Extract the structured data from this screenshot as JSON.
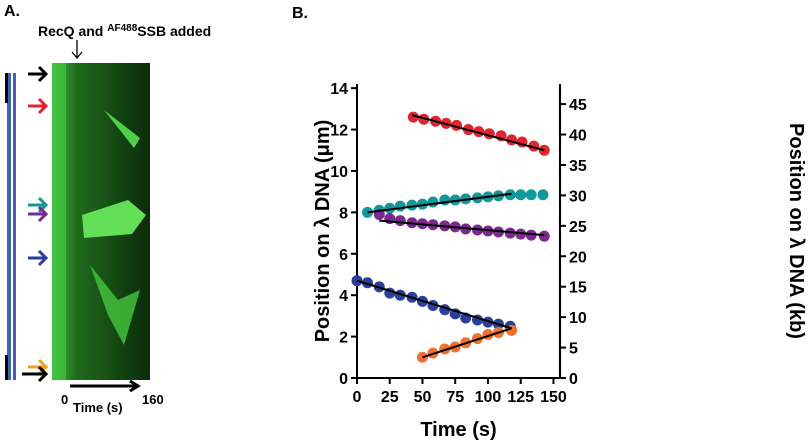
{
  "panel_a": {
    "label": "A.",
    "title_parts": [
      "RecQ and ",
      "AF488",
      "SSB added"
    ],
    "time_start": "0",
    "time_end": "160",
    "time_label": "Time (s)"
  },
  "chart_data": {
    "type": "scatter",
    "panel_label": "B.",
    "x_label": "Time (s)",
    "y_label": "Position on λ DNA (μm)",
    "y2_label": "Position on λ DNA (kb)",
    "xlim": [
      0,
      155
    ],
    "ylim": [
      0,
      14.2
    ],
    "y2lim": [
      0,
      48.3
    ],
    "xticks": [
      0,
      25,
      50,
      75,
      100,
      125,
      150
    ],
    "yticks": [
      0,
      2,
      4,
      6,
      8,
      10,
      12,
      14
    ],
    "y2ticks": [
      0,
      5,
      10,
      15,
      20,
      25,
      30,
      35,
      40,
      45
    ],
    "series": [
      {
        "color": "#e0262c",
        "x": [
          43,
          51,
          60,
          68,
          76,
          85,
          93,
          101,
          110,
          118,
          126,
          135,
          143
        ],
        "values": [
          12.6,
          12.5,
          12.4,
          12.3,
          12.2,
          12.0,
          11.9,
          11.8,
          11.7,
          11.5,
          11.4,
          11.2,
          11.0
        ]
      },
      {
        "color": "#12979a",
        "x": [
          8,
          17,
          25,
          33,
          42,
          50,
          58,
          67,
          75,
          83,
          92,
          100,
          108,
          117,
          125,
          133,
          142
        ],
        "values": [
          8.0,
          8.1,
          8.2,
          8.3,
          8.35,
          8.4,
          8.5,
          8.6,
          8.6,
          8.65,
          8.7,
          8.75,
          8.8,
          8.85,
          8.85,
          8.85,
          8.85
        ]
      },
      {
        "color": "#7a2a8e",
        "x": [
          17,
          25,
          33,
          42,
          50,
          58,
          67,
          75,
          83,
          92,
          100,
          108,
          117,
          125,
          133,
          143
        ],
        "values": [
          7.9,
          7.7,
          7.6,
          7.5,
          7.45,
          7.4,
          7.35,
          7.3,
          7.2,
          7.15,
          7.1,
          7.05,
          7.0,
          6.95,
          6.9,
          6.85
        ]
      },
      {
        "color": "#2a3f99",
        "x": [
          0,
          8,
          17,
          25,
          33,
          42,
          50,
          58,
          67,
          75,
          83,
          92,
          100,
          108,
          117
        ],
        "values": [
          4.7,
          4.6,
          4.4,
          4.1,
          4.0,
          3.9,
          3.7,
          3.5,
          3.3,
          3.1,
          2.9,
          2.8,
          2.7,
          2.6,
          2.5
        ]
      },
      {
        "color": "#f0712e",
        "x": [
          50,
          58,
          67,
          75,
          83,
          92,
          100,
          108,
          118
        ],
        "values": [
          1.0,
          1.2,
          1.4,
          1.5,
          1.7,
          1.9,
          2.1,
          2.2,
          2.3
        ]
      }
    ],
    "fits": [
      {
        "color": "#000000",
        "x": [
          42,
          143
        ],
        "values": [
          12.7,
          11.0
        ]
      },
      {
        "color": "#000000",
        "x": [
          8,
          118
        ],
        "values": [
          8.0,
          8.9
        ]
      },
      {
        "color": "#000000",
        "x": [
          17,
          143
        ],
        "values": [
          7.6,
          6.9
        ]
      },
      {
        "color": "#000000",
        "x": [
          0,
          118
        ],
        "values": [
          4.7,
          2.4
        ]
      },
      {
        "color": "#000000",
        "x": [
          50,
          118
        ],
        "values": [
          1.0,
          2.4
        ]
      }
    ]
  }
}
